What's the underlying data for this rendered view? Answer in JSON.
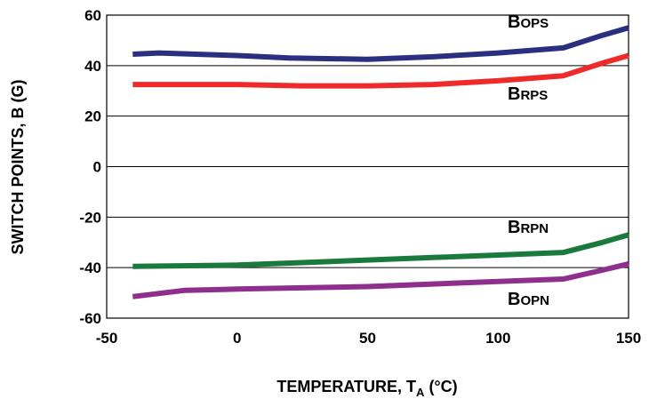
{
  "chart_data": {
    "type": "line",
    "xlabel_main": "TEMPERATURE, T",
    "xlabel_sub": "A",
    "xlabel_unit": " (°C)",
    "ylabel": "SWITCH POINTS, B (G)",
    "xlim": [
      -50,
      150
    ],
    "ylim": [
      -60,
      60
    ],
    "xticks": [
      -50,
      0,
      50,
      100,
      150
    ],
    "xtick_labels": [
      "-50",
      "0",
      "50",
      "100",
      "150"
    ],
    "yticks": [
      -60,
      -40,
      -20,
      0,
      20,
      40,
      60
    ],
    "ytick_labels": [
      "-60",
      "-40",
      "-20",
      "0",
      "20",
      "40",
      "60"
    ],
    "grid": true,
    "series": [
      {
        "name": "BOPS",
        "label_first": "B",
        "label_rest": "OPS",
        "color": "#2b2f80",
        "x": [
          -40,
          -30,
          0,
          20,
          50,
          75,
          100,
          125,
          140,
          150
        ],
        "y": [
          44.5,
          45,
          44,
          43,
          42.5,
          43.5,
          45,
          47,
          52,
          55
        ]
      },
      {
        "name": "BRPS",
        "label_first": "B",
        "label_rest": "RPS",
        "color": "#ee2a2a",
        "x": [
          -40,
          0,
          25,
          50,
          75,
          100,
          125,
          140,
          150
        ],
        "y": [
          32.5,
          32.5,
          32,
          32,
          32.5,
          34,
          36,
          41,
          44
        ]
      },
      {
        "name": "BRPN",
        "label_first": "B",
        "label_rest": "RPN",
        "color": "#1a7a3e",
        "x": [
          -40,
          0,
          25,
          50,
          75,
          100,
          125,
          140,
          150
        ],
        "y": [
          -39.5,
          -39,
          -38,
          -37,
          -36,
          -35,
          -34,
          -30,
          -27
        ]
      },
      {
        "name": "BOPN",
        "label_first": "B",
        "label_rest": "OPN",
        "color": "#8e2f8e",
        "x": [
          -40,
          -20,
          0,
          25,
          50,
          75,
          100,
          125,
          140,
          150
        ],
        "y": [
          -51.5,
          -49,
          -48.5,
          -48,
          -47.5,
          -46.5,
          -45.5,
          -44.5,
          -41,
          -38.5
        ]
      }
    ]
  }
}
